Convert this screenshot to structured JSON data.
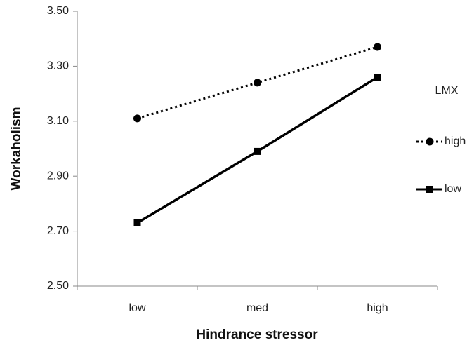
{
  "chart_data": {
    "type": "line",
    "x_label": "Hindrance stressor",
    "y_label": "Workaholism",
    "categories": [
      "low",
      "med",
      "high"
    ],
    "series": [
      {
        "name": "high",
        "color": "#000000",
        "linestyle": "dotted",
        "marker": "circle",
        "values": [
          3.11,
          3.24,
          3.37
        ]
      },
      {
        "name": "low",
        "color": "#000000",
        "linestyle": "solid",
        "marker": "square",
        "values": [
          2.73,
          2.99,
          3.26
        ]
      }
    ],
    "ylim": [
      2.5,
      3.5
    ],
    "yticks": [
      {
        "value": 2.5,
        "label": "2.50"
      },
      {
        "value": 2.7,
        "label": "2.70"
      },
      {
        "value": 2.9,
        "label": "2.90"
      },
      {
        "value": 3.1,
        "label": "3.10"
      },
      {
        "value": 3.3,
        "label": "3.30"
      },
      {
        "value": 3.5,
        "label": "3.50"
      }
    ],
    "legend_title": "LMX",
    "legend": "right",
    "grid": false
  }
}
